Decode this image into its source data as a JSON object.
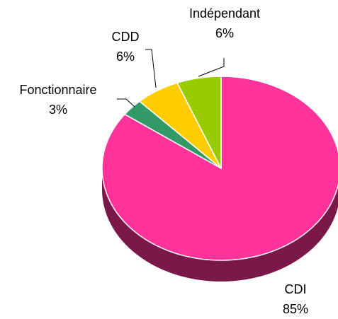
{
  "chart_data": {
    "type": "pie",
    "categories": [
      "CDI",
      "Fonctionnaire",
      "CDD",
      "Indépendant"
    ],
    "values": [
      85,
      3,
      6,
      6
    ],
    "value_labels": [
      "85%",
      "3%",
      "6%",
      "6%"
    ],
    "colors": [
      "#ff3399",
      "#339966",
      "#ffcc00",
      "#99cc00"
    ],
    "three_d": true
  }
}
